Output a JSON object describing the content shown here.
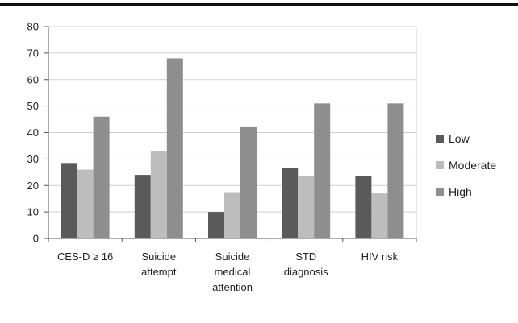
{
  "chart_data": {
    "type": "bar",
    "categories": [
      [
        "CES-D ≥ 16"
      ],
      [
        "Suicide",
        "attempt"
      ],
      [
        "Suicide",
        "medical",
        "attention"
      ],
      [
        "STD",
        "diagnosis"
      ],
      [
        "HIV risk"
      ]
    ],
    "series": [
      {
        "name": "Low",
        "color": "#5a5a5a",
        "values": [
          28.5,
          24,
          10,
          26.5,
          23.5
        ]
      },
      {
        "name": "Moderate",
        "color": "#bdbdbd",
        "values": [
          26,
          33,
          17.5,
          23.5,
          17
        ]
      },
      {
        "name": "High",
        "color": "#8e8e8e",
        "values": [
          46,
          68,
          42,
          51,
          51
        ]
      }
    ],
    "ylim": [
      0,
      80
    ],
    "yticks": [
      0,
      10,
      20,
      30,
      40,
      50,
      60,
      70,
      80
    ],
    "grid": true,
    "legend": "right",
    "title": "",
    "xlabel": "",
    "ylabel": ""
  }
}
